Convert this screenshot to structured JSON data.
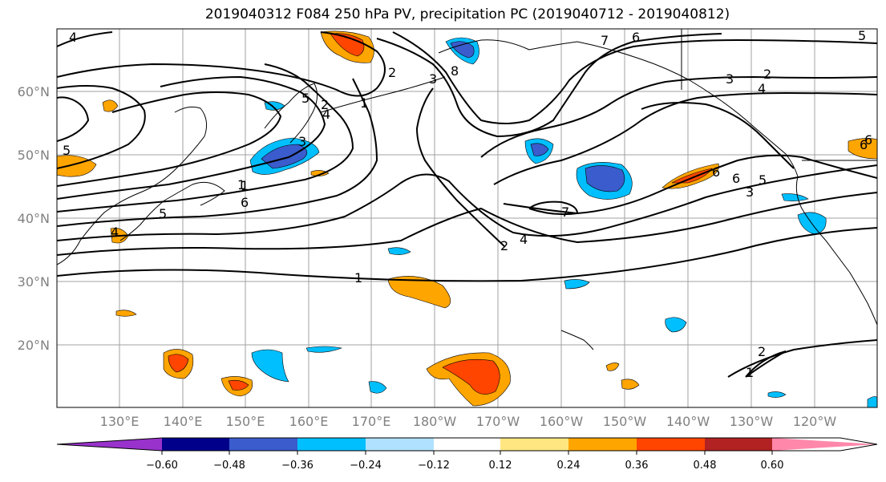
{
  "title": "2019040312 F084 250 hPa PV, precipitation PC (2019040712 - 2019040812)",
  "lat_labels": [
    "60°N",
    "50°N",
    "40°N",
    "30°N",
    "20°N"
  ],
  "lon_labels": [
    "130°E",
    "140°E",
    "150°E",
    "160°E",
    "170°E",
    "180°W",
    "170°W",
    "160°W",
    "150°W",
    "140°W",
    "130°W",
    "120°W"
  ],
  "contour_labels": [
    "4",
    "5",
    "5",
    "4",
    "6",
    "1",
    "1",
    "2",
    "3",
    "5",
    "8",
    "7",
    "6",
    "3",
    "2",
    "4",
    "6",
    "5",
    "3",
    "2",
    "6",
    "5",
    "7",
    "6",
    "4",
    "2",
    "3",
    "4",
    "1",
    "1",
    "2",
    "1",
    "6"
  ],
  "colorbar": {
    "ticks": [
      "−0.60",
      "−0.48",
      "−0.36",
      "−0.24",
      "−0.12",
      "0.12",
      "0.24",
      "0.36",
      "0.48",
      "0.60"
    ],
    "colors": [
      "#9932cc",
      "#00008b",
      "#3a5ccc",
      "#00bfff",
      "#b0e2ff",
      "#ffffff",
      "#ffe680",
      "#ffa500",
      "#ff4500",
      "#b22222",
      "#ff88aa"
    ]
  }
}
